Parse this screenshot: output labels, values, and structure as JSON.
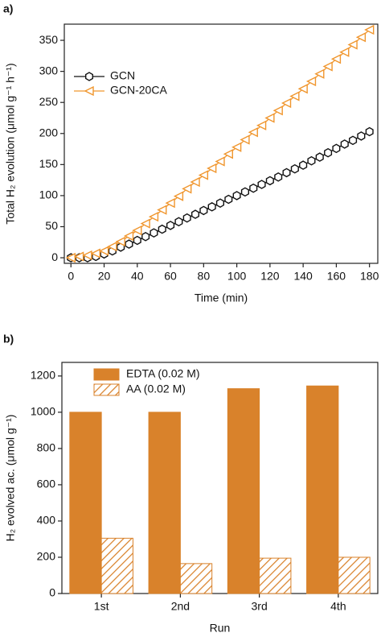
{
  "chart_data": [
    {
      "type": "line",
      "label": "a)",
      "xlabel": "Time (min)",
      "ylabel": "Total H₂ evolution (μmol g⁻¹ h⁻¹)",
      "x": [
        0,
        5,
        10,
        15,
        20,
        25,
        30,
        35,
        40,
        45,
        50,
        55,
        60,
        65,
        70,
        75,
        80,
        85,
        90,
        95,
        100,
        105,
        110,
        115,
        120,
        125,
        130,
        135,
        140,
        145,
        150,
        155,
        160,
        165,
        170,
        175,
        180
      ],
      "series": [
        {
          "name": "GCN",
          "color": "#111111",
          "marker": "hexagon",
          "values": [
            0,
            0,
            0,
            2,
            6,
            11,
            17,
            22,
            28,
            34,
            40,
            46,
            52,
            58,
            64,
            70,
            76,
            82,
            88,
            94,
            100,
            106,
            112,
            118,
            124,
            130,
            137,
            143,
            149,
            156,
            162,
            169,
            176,
            183,
            189,
            196,
            203
          ]
        },
        {
          "name": "GCN-20CA",
          "color": "#f0962e",
          "marker": "triangle-left",
          "values": [
            0,
            2,
            4,
            7,
            11,
            18,
            26,
            35,
            44,
            55,
            66,
            77,
            88,
            99,
            111,
            122,
            133,
            144,
            155,
            167,
            178,
            190,
            202,
            213,
            225,
            237,
            249,
            260,
            272,
            284,
            296,
            308,
            320,
            331,
            343,
            355,
            367
          ]
        }
      ],
      "xlim": [
        -4,
        185
      ],
      "xticks": [
        0,
        20,
        40,
        60,
        80,
        100,
        120,
        140,
        160,
        180
      ],
      "ylim": [
        -9,
        376
      ],
      "yticks": [
        0,
        50,
        100,
        150,
        200,
        250,
        300,
        350
      ],
      "legend": "upper left"
    },
    {
      "type": "bar",
      "label": "b)",
      "xlabel": "Run",
      "ylabel": "H₂ evolved ac. (μmol g⁻¹)",
      "categories": [
        "1st",
        "2nd",
        "3rd",
        "4th"
      ],
      "series": [
        {
          "name": "EDTA (0.02 M)",
          "color": "#d9822b",
          "pattern": "solid",
          "values": [
            1000,
            1000,
            1130,
            1145
          ]
        },
        {
          "name": "AA (0.02 M)",
          "color": "#d9822b",
          "pattern": "hatch",
          "values": [
            305,
            165,
            195,
            200
          ]
        }
      ],
      "ylim": [
        0,
        1275
      ],
      "yticks": [
        0,
        200,
        400,
        600,
        800,
        1000,
        1200
      ],
      "legend": "upper left"
    }
  ]
}
